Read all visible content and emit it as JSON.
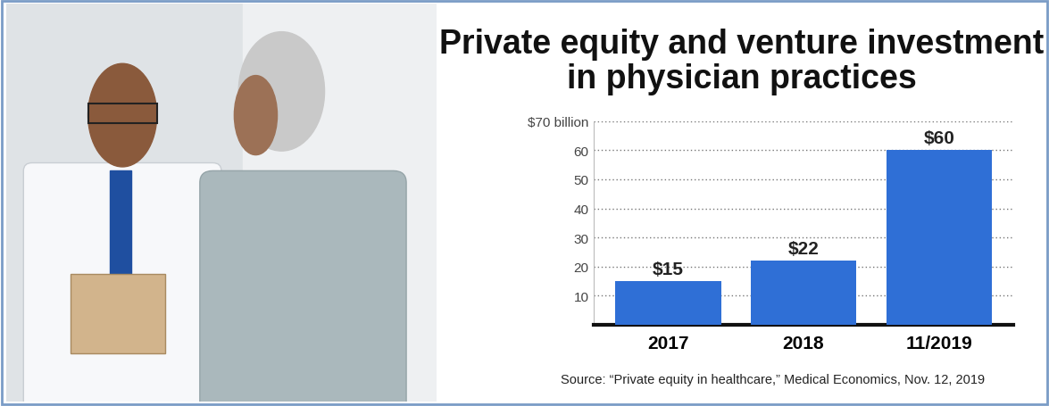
{
  "chart_data": {
    "type": "bar",
    "title": "Private equity and venture investment in physician practices",
    "categories": [
      "2017",
      "2018",
      "11/2019"
    ],
    "values": [
      15,
      22,
      60
    ],
    "value_labels": [
      "$15",
      "$22",
      "$60"
    ],
    "data_labels": true,
    "color": "#2f6fd6",
    "ylim": [
      0,
      70
    ],
    "yticks": [
      10,
      20,
      30,
      40,
      50,
      60,
      {
        "value": 70,
        "label": "$70 billion"
      }
    ],
    "grid": true,
    "source": "Source: “Private equity in healthcare,” Medical Economics, Nov. 12, 2019"
  }
}
